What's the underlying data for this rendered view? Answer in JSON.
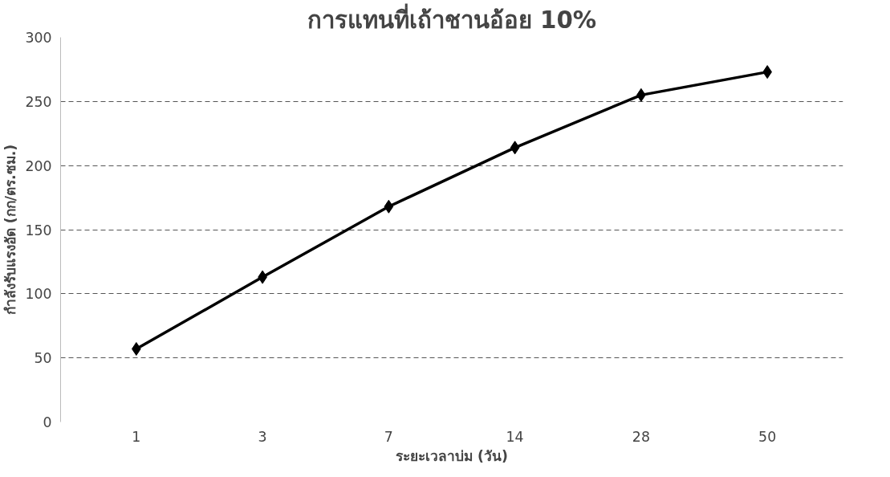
{
  "chart_data": {
    "type": "line",
    "title": "การแทนที่เถ้าชานอ้อย 10%",
    "xlabel": "ระยะเวลาบ่ม (วัน)",
    "ylabel": "กำลังรับแรงอัด (กก/ตร.ซม.)",
    "categories": [
      "1",
      "3",
      "7",
      "14",
      "28",
      "50"
    ],
    "series": [
      {
        "color": "#000000",
        "values": [
          57,
          113,
          168,
          214,
          255,
          273
        ]
      }
    ],
    "ylim": [
      0,
      300
    ],
    "yticks": [
      0,
      50,
      100,
      150,
      200,
      250,
      300
    ],
    "grid": "y",
    "marker": "diamond",
    "line_style": "solid"
  }
}
